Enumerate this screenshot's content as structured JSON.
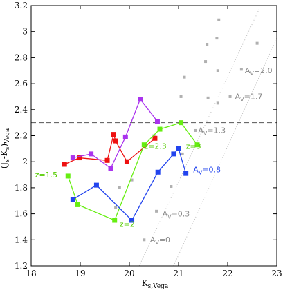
{
  "chart_data": {
    "type": "scatter",
    "xlabel": "K",
    "xlabel_sub": "s,Vega",
    "ylabel": "(J",
    "ylabel_sub1": "s",
    "ylabel_mid": "-K",
    "ylabel_sub2": "s",
    "ylabel_end": ")",
    "ylabel_sub3": "Vega",
    "xlim": [
      18,
      23
    ],
    "ylim": [
      1.2,
      3.2
    ],
    "xticks": [
      "18",
      "19",
      "20",
      "21",
      "22",
      "23"
    ],
    "yticks": [
      "1.2",
      "1.4",
      "1.6",
      "1.8",
      "2",
      "2.2",
      "2.4",
      "2.6",
      "2.8",
      "3",
      "3.2"
    ],
    "grid": false,
    "reference_line": {
      "y": 2.3,
      "style": "dashed",
      "color": "#555555"
    },
    "series": [
      {
        "color": "#ee1111",
        "points": [
          [
            18.68,
            1.98
          ],
          [
            18.98,
            2.03
          ],
          [
            19.55,
            2.01
          ],
          [
            19.68,
            2.21
          ],
          [
            19.72,
            2.16
          ],
          [
            19.95,
            2.0
          ],
          [
            20.52,
            2.18
          ]
        ]
      },
      {
        "color": "#aa33ee",
        "points": [
          [
            18.85,
            2.03
          ],
          [
            19.22,
            2.06
          ],
          [
            19.62,
            1.95
          ],
          [
            19.92,
            2.19
          ],
          [
            20.22,
            2.48
          ],
          [
            20.57,
            2.31
          ]
        ]
      },
      {
        "color": "#66ee11",
        "points": [
          [
            18.75,
            1.89
          ],
          [
            18.95,
            1.67
          ],
          [
            19.7,
            1.55
          ],
          [
            20.3,
            2.13
          ],
          [
            20.62,
            2.25
          ],
          [
            21.05,
            2.3
          ],
          [
            21.38,
            2.13
          ]
        ]
      },
      {
        "color": "#2244ee",
        "points": [
          [
            18.85,
            1.71
          ],
          [
            19.33,
            1.82
          ],
          [
            20.05,
            1.55
          ],
          [
            20.58,
            1.92
          ],
          [
            20.9,
            2.06
          ],
          [
            21.0,
            2.1
          ],
          [
            21.15,
            1.91
          ]
        ]
      }
    ],
    "reddening_tracks": [
      {
        "color": "#b0b0b0",
        "points": [
          [
            20.3,
            1.4
          ],
          [
            20.55,
            1.62
          ],
          [
            20.85,
            1.81
          ],
          [
            21.08,
            2.06
          ],
          [
            21.35,
            2.24
          ],
          [
            21.6,
            2.49
          ],
          [
            21.8,
            2.7
          ]
        ]
      },
      {
        "color": "#b0b0b0",
        "points": [
          [
            19.72,
            1.65
          ],
          [
            19.8,
            1.8
          ],
          [
            20.05,
            1.86
          ],
          [
            20.5,
            2.2
          ],
          [
            21.05,
            2.5
          ],
          [
            21.12,
            2.65
          ],
          [
            21.55,
            2.77
          ],
          [
            21.58,
            2.9
          ],
          [
            21.78,
            2.95
          ],
          [
            21.82,
            3.09
          ]
        ]
      },
      {
        "color": "#b0b0b0",
        "points": [
          [
            21.8,
            2.45
          ],
          [
            22.05,
            2.5
          ],
          [
            22.28,
            2.71
          ],
          [
            22.6,
            2.91
          ]
        ]
      }
    ],
    "dotted_guides": [
      {
        "from": [
          20.2,
          1.2
        ],
        "to": [
          22.65,
          3.18
        ]
      },
      {
        "from": [
          20.9,
          1.2
        ],
        "to": [
          23.0,
          2.95
        ]
      }
    ],
    "annotations": [
      {
        "text": "z=1.5",
        "x": 18.08,
        "y": 1.88,
        "color": "#55cc00"
      },
      {
        "text": "z=2",
        "x": 19.8,
        "y": 1.5,
        "color": "#55cc00"
      },
      {
        "text": "z=2.3",
        "x": 20.3,
        "y": 2.1,
        "color": "#55cc00"
      },
      {
        "text": "z=3",
        "x": 21.15,
        "y": 2.1,
        "color": "#55cc00"
      },
      {
        "text": "A",
        "sub": "V",
        "rest": "=0.8",
        "x": 21.3,
        "y": 1.92,
        "color": "#2244ee"
      },
      {
        "text": "A",
        "sub": "V",
        "rest": "=0",
        "x": 20.42,
        "y": 1.38,
        "color": "#888888"
      },
      {
        "text": "A",
        "sub": "V",
        "rest": "=0.3",
        "x": 20.67,
        "y": 1.58,
        "color": "#888888"
      },
      {
        "text": "A",
        "sub": "V",
        "rest": "=1.3",
        "x": 21.4,
        "y": 2.22,
        "color": "#888888"
      },
      {
        "text": "A",
        "sub": "V",
        "rest": "=1.7",
        "x": 22.15,
        "y": 2.48,
        "color": "#888888"
      },
      {
        "text": "A",
        "sub": "V",
        "rest": "=2.0",
        "x": 22.35,
        "y": 2.68,
        "color": "#888888"
      }
    ]
  }
}
